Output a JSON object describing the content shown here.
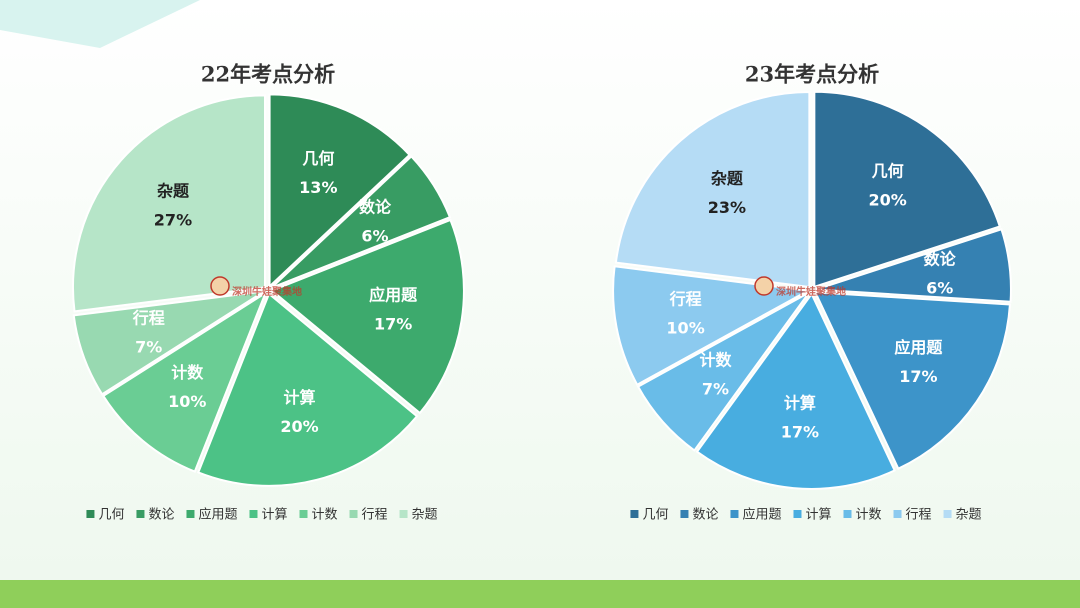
{
  "chart_data": [
    {
      "type": "pie",
      "title": "22年考点分析",
      "categories": [
        "几何",
        "数论",
        "应用题",
        "计算",
        "计数",
        "行程",
        "杂题"
      ],
      "values": [
        13,
        6,
        17,
        20,
        10,
        7,
        27
      ],
      "value_labels": [
        "13%",
        "6%",
        "17%",
        "20%",
        "10%",
        "7%",
        "27%"
      ],
      "colors": [
        "#2e8b57",
        "#389c63",
        "#3daa6d",
        "#4cc286",
        "#6acd94",
        "#98d9b1",
        "#b6e5c8"
      ],
      "legend": "bottom"
    },
    {
      "type": "pie",
      "title": "23年考点分析",
      "categories": [
        "几何",
        "数论",
        "应用题",
        "计算",
        "计数",
        "行程",
        "杂题"
      ],
      "values": [
        20,
        6,
        17,
        17,
        7,
        10,
        23
      ],
      "value_labels": [
        "20%",
        "6%",
        "17%",
        "17%",
        "7%",
        "10%",
        "23%"
      ],
      "colors": [
        "#2e6f97",
        "#3581b2",
        "#3d94c9",
        "#48ade0",
        "#69bce8",
        "#8ccaef",
        "#b5dcf5"
      ],
      "legend": "bottom"
    }
  ],
  "watermark": "深圳牛娃聚集地"
}
